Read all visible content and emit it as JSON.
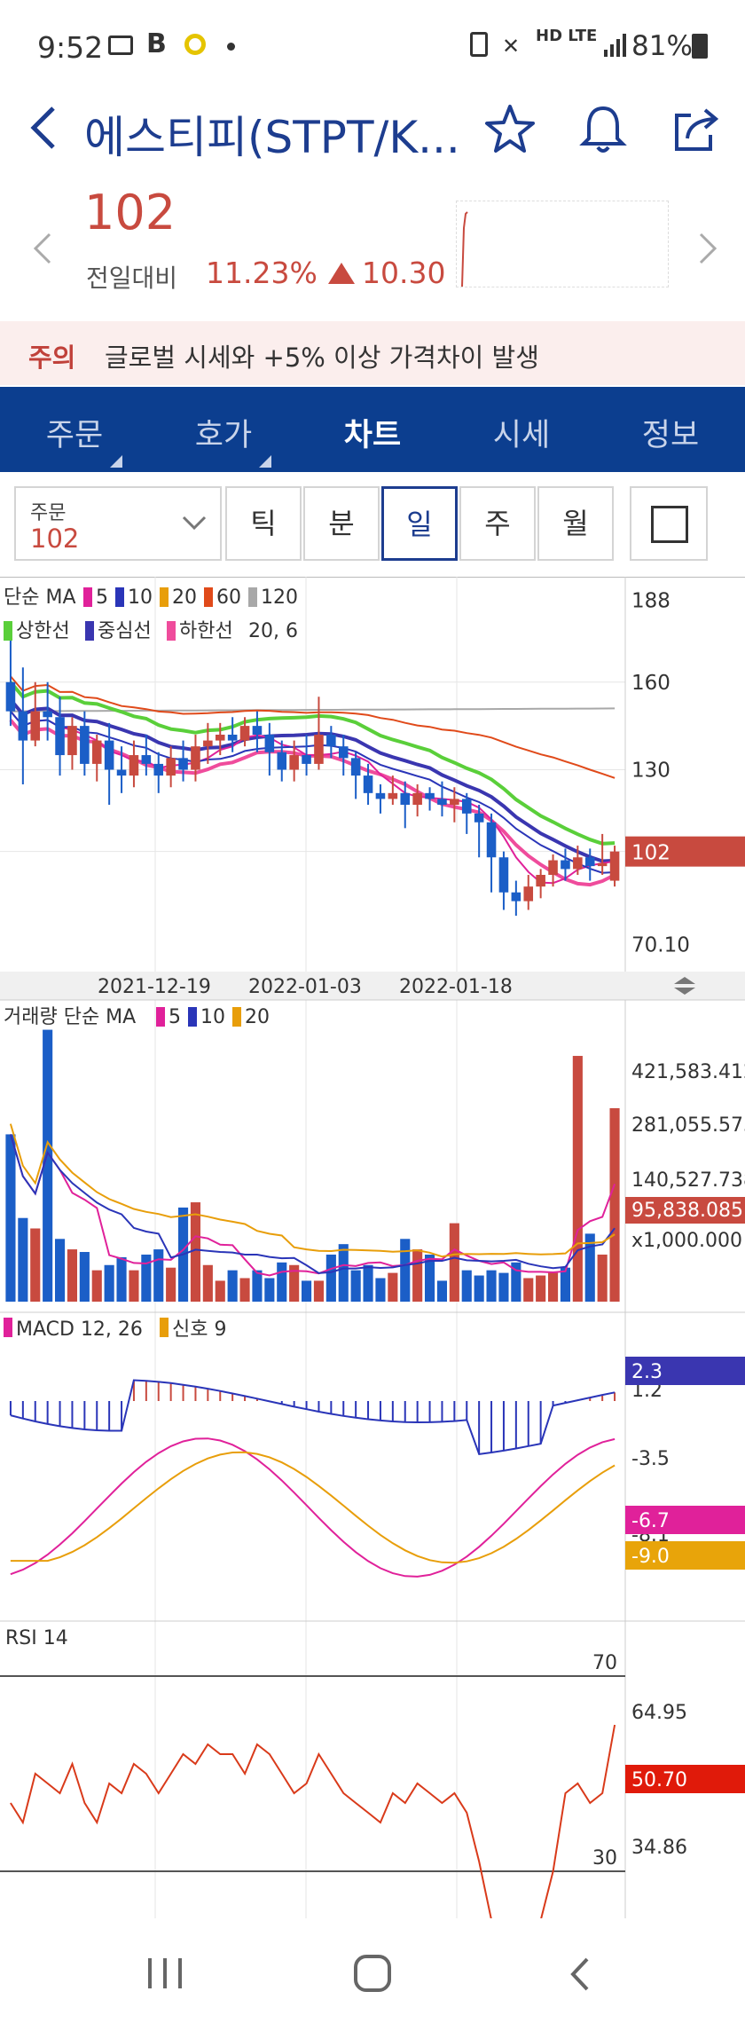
{
  "status_bar": {
    "time": "9:52",
    "left_icons": [
      "image-icon",
      "b-app-icon",
      "p-app-icon",
      "dot-icon"
    ],
    "right_text": "HD LTE",
    "battery": "81%"
  },
  "header": {
    "title": "에스티피(STPT/K...",
    "back_icon": "chevron-left-icon",
    "icons": [
      "star-icon",
      "bell-icon",
      "share-icon"
    ]
  },
  "quote": {
    "price": "102",
    "change_label": "전일대비",
    "change_pct": "11.23%",
    "change_val": "10.30",
    "up_color": "#c84a3f"
  },
  "warning": {
    "label": "주의",
    "message": "글로벌 시세와 +5% 이상 가격차이 발생"
  },
  "tabs": [
    {
      "label": "주문",
      "active": false,
      "has_dropdown": true
    },
    {
      "label": "호가",
      "active": false,
      "has_dropdown": true
    },
    {
      "label": "차트",
      "active": true,
      "has_dropdown": false
    },
    {
      "label": "시세",
      "active": false,
      "has_dropdown": false
    },
    {
      "label": "정보",
      "active": false,
      "has_dropdown": false
    }
  ],
  "controls": {
    "order_label": "주문",
    "order_value": "102",
    "periods": [
      {
        "label": "틱",
        "selected": false
      },
      {
        "label": "분",
        "selected": false
      },
      {
        "label": "일",
        "selected": true
      },
      {
        "label": "주",
        "selected": false
      },
      {
        "label": "월",
        "selected": false
      }
    ]
  },
  "chart_data": [
    {
      "type": "candlestick",
      "title": "단순 MA",
      "ma_periods": [
        5,
        10,
        20,
        60,
        120
      ],
      "ma_colors": [
        "#e0219a",
        "#2a35b8",
        "#e89e0a",
        "#e04a1a",
        "#a8a8a8"
      ],
      "bollinger": {
        "labels": [
          "상한선",
          "중심선",
          "하한선"
        ],
        "params": "20, 6",
        "colors": [
          "#5acf3a",
          "#3a36b0",
          "#ef4c9c"
        ]
      },
      "y_ticks": [
        "188",
        "160",
        "130",
        "102",
        "70.10"
      ],
      "last_price": "102",
      "x_labels": [
        "2021-12-19",
        "2022-01-03",
        "2022-01-18"
      ],
      "candles": [
        [
          160,
          150,
          175,
          145
        ],
        [
          150,
          140,
          165,
          125
        ],
        [
          140,
          150,
          160,
          138
        ],
        [
          150,
          148,
          160,
          140
        ],
        [
          148,
          135,
          155,
          128
        ],
        [
          135,
          145,
          148,
          130
        ],
        [
          145,
          132,
          150,
          128
        ],
        [
          132,
          140,
          142,
          126
        ],
        [
          140,
          130,
          146,
          118
        ],
        [
          130,
          128,
          138,
          122
        ],
        [
          128,
          135,
          140,
          124
        ],
        [
          135,
          132,
          142,
          128
        ],
        [
          132,
          128,
          136,
          122
        ],
        [
          128,
          134,
          138,
          124
        ],
        [
          134,
          130,
          140,
          126
        ],
        [
          130,
          138,
          142,
          126
        ],
        [
          138,
          140,
          146,
          132
        ],
        [
          140,
          142,
          146,
          135
        ],
        [
          142,
          140,
          148,
          136
        ],
        [
          140,
          145,
          148,
          138
        ],
        [
          145,
          142,
          150,
          136
        ],
        [
          142,
          136,
          146,
          128
        ],
        [
          136,
          130,
          140,
          126
        ],
        [
          130,
          135,
          140,
          126
        ],
        [
          135,
          132,
          142,
          128
        ],
        [
          132,
          142,
          155,
          130
        ],
        [
          142,
          138,
          145,
          134
        ],
        [
          138,
          134,
          142,
          128
        ],
        [
          134,
          128,
          136,
          120
        ],
        [
          128,
          122,
          132,
          118
        ],
        [
          122,
          120,
          125,
          115
        ],
        [
          120,
          122,
          128,
          118
        ],
        [
          122,
          118,
          126,
          110
        ],
        [
          118,
          122,
          125,
          114
        ],
        [
          122,
          120,
          124,
          116
        ],
        [
          120,
          118,
          126,
          114
        ],
        [
          118,
          120,
          124,
          112
        ],
        [
          120,
          115,
          122,
          108
        ],
        [
          115,
          112,
          118,
          100
        ],
        [
          112,
          100,
          115,
          88
        ],
        [
          100,
          88,
          102,
          82
        ],
        [
          88,
          85,
          92,
          80
        ],
        [
          85,
          90,
          94,
          82
        ],
        [
          90,
          94,
          96,
          86
        ],
        [
          94,
          99,
          101,
          90
        ],
        [
          99,
          96,
          103,
          92
        ],
        [
          96,
          100,
          104,
          94
        ],
        [
          100,
          97,
          103,
          92
        ],
        [
          97,
          98,
          108,
          94
        ],
        [
          92,
          102,
          104,
          90
        ]
      ]
    },
    {
      "type": "bar",
      "title": "거래량 단순 MA",
      "ma_periods": [
        5,
        10,
        20
      ],
      "ma_colors": [
        "#e0219a",
        "#2a35b8",
        "#e89e0a"
      ],
      "y_ticks": [
        "421,583.412",
        "281,055.575",
        "140,527.738",
        "95,838.085",
        "x1,000.000"
      ],
      "values": [
        320,
        160,
        140,
        520,
        120,
        100,
        95,
        60,
        70,
        85,
        60,
        90,
        100,
        65,
        180,
        190,
        70,
        40,
        60,
        45,
        60,
        45,
        75,
        70,
        40,
        40,
        90,
        110,
        60,
        70,
        45,
        55,
        120,
        100,
        90,
        40,
        150,
        60,
        50,
        60,
        55,
        75,
        45,
        50,
        55,
        65,
        470,
        130,
        90,
        370
      ]
    },
    {
      "type": "line",
      "title": "MACD 12, 26",
      "signal_label": "신호 9",
      "colors": [
        "#e0219a",
        "#e89e0a"
      ],
      "y_ticks": [
        "1.2",
        "-3.5",
        "-8.1"
      ],
      "last_values": {
        "histogram": "2.3",
        "macd": "-6.7",
        "signal": "-9.0"
      }
    },
    {
      "type": "line",
      "title": "RSI 14",
      "levels": [
        "70",
        "30"
      ],
      "y_ticks": [
        "64.95",
        "34.86"
      ],
      "last_value": "50.70"
    }
  ],
  "navbar": {
    "icons": [
      "recent-apps-icon",
      "home-icon",
      "back-icon"
    ]
  }
}
